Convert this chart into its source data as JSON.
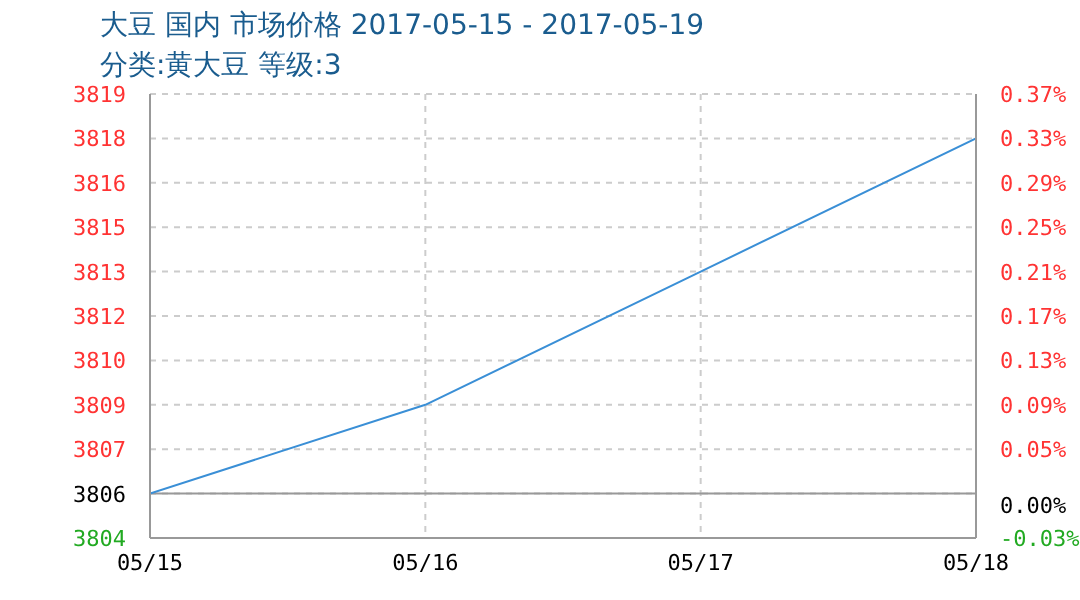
{
  "chart_data": {
    "type": "line",
    "title": "大豆 国内 市场价格 2017-05-15 - 2017-05-19",
    "subtitle": "分类:黄大豆 等级:3",
    "categories": [
      "05/15",
      "05/16",
      "05/17",
      "05/18"
    ],
    "series": [
      {
        "color": "#3a8fd6",
        "values": [
          3806,
          3809,
          3813.5,
          3818
        ]
      }
    ],
    "ylim": [
      3804.5,
      3819.5
    ],
    "yticks": [
      {
        "value": 3804.5,
        "label": "3804"
      },
      {
        "value": 3806,
        "label": "3806"
      },
      {
        "value": 3807.5,
        "label": "3807"
      },
      {
        "value": 3809,
        "label": "3809"
      },
      {
        "value": 3810.5,
        "label": "3810"
      },
      {
        "value": 3812,
        "label": "3812"
      },
      {
        "value": 3813.5,
        "label": "3813"
      },
      {
        "value": 3815,
        "label": "3815"
      },
      {
        "value": 3816.5,
        "label": "3816"
      },
      {
        "value": 3818,
        "label": "3818"
      },
      {
        "value": 3819.5,
        "label": "3819"
      }
    ],
    "y2lim": [
      -0.03,
      0.37
    ],
    "y2ticks": [
      {
        "value": -0.03,
        "label": "-0.03%"
      },
      {
        "value": 0,
        "label": "0.00%"
      },
      {
        "value": 0.05,
        "label": "0.05%"
      },
      {
        "value": 0.09,
        "label": "0.09%"
      },
      {
        "value": 0.13,
        "label": "0.13%"
      },
      {
        "value": 0.17,
        "label": "0.17%"
      },
      {
        "value": 0.21,
        "label": "0.21%"
      },
      {
        "value": 0.25,
        "label": "0.25%"
      },
      {
        "value": 0.29,
        "label": "0.29%"
      },
      {
        "value": 0.33,
        "label": "0.33%"
      },
      {
        "value": 0.37,
        "label": "0.37%"
      }
    ],
    "grid": true,
    "ref_lines": [
      {
        "axis": "y",
        "value": 3806,
        "color": "#999999"
      }
    ]
  }
}
